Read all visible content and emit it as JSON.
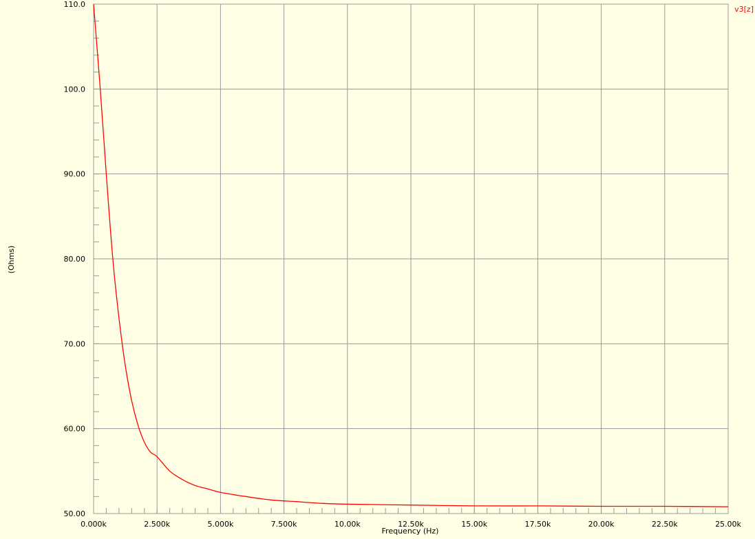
{
  "colors": {
    "background": "#ffffe6",
    "grid": "#9a9a9a",
    "series": "#ff0000",
    "text": "#000000"
  },
  "chart_data": {
    "type": "line",
    "title": "",
    "xlabel": "Frequency (Hz)",
    "ylabel": "(Ohms)",
    "xlim": [
      0,
      25000
    ],
    "ylim": [
      50,
      110
    ],
    "x_ticks": [
      {
        "value": 0,
        "label": "0.000k"
      },
      {
        "value": 2500,
        "label": "2.500k"
      },
      {
        "value": 5000,
        "label": "5.000k"
      },
      {
        "value": 7500,
        "label": "7.500k"
      },
      {
        "value": 10000,
        "label": "10.00k"
      },
      {
        "value": 12500,
        "label": "12.50k"
      },
      {
        "value": 15000,
        "label": "15.00k"
      },
      {
        "value": 17500,
        "label": "17.50k"
      },
      {
        "value": 20000,
        "label": "20.00k"
      },
      {
        "value": 22500,
        "label": "22.50k"
      },
      {
        "value": 25000,
        "label": "25.00k"
      }
    ],
    "y_ticks": [
      {
        "value": 50,
        "label": "50.00"
      },
      {
        "value": 60,
        "label": "60.00"
      },
      {
        "value": 70,
        "label": "70.00"
      },
      {
        "value": 80,
        "label": "80.00"
      },
      {
        "value": 90,
        "label": "90.00"
      },
      {
        "value": 100,
        "label": "100.0"
      },
      {
        "value": 110,
        "label": "110.0"
      }
    ],
    "grid": true,
    "legend": "top-right",
    "series": [
      {
        "name": "v3[z]",
        "color": "#ff0000",
        "x": [
          0,
          250,
          500,
          750,
          1000,
          1250,
          1500,
          1750,
          2000,
          2250,
          2500,
          3000,
          3500,
          4000,
          4500,
          5000,
          6000,
          7000,
          8000,
          9000,
          10000,
          12500,
          15000,
          17500,
          20000,
          22500,
          25000
        ],
        "y": [
          110.0,
          100.5,
          90.0,
          80.2,
          73.0,
          67.4,
          63.3,
          60.4,
          58.4,
          57.2,
          56.7,
          55.0,
          54.0,
          53.3,
          52.9,
          52.5,
          52.0,
          51.6,
          51.4,
          51.2,
          51.1,
          51.0,
          50.9,
          50.9,
          50.85,
          50.85,
          50.8
        ]
      }
    ]
  }
}
